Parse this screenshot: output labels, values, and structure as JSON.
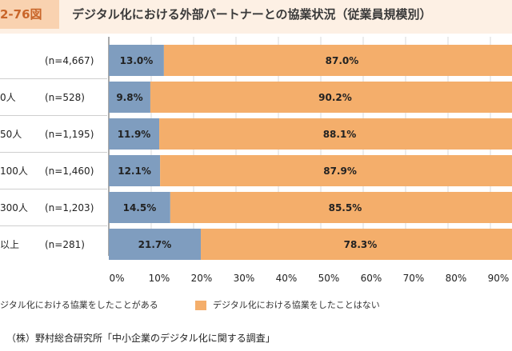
{
  "figure": {
    "number": "2-76図",
    "title": "デジタル化における外部パートナーとの協業状況（従業員規模別）"
  },
  "rows": [
    {
      "label": "",
      "n": "(n=4,667)"
    },
    {
      "label": "0人",
      "n": "(n=528)"
    },
    {
      "label": "50人",
      "n": "(n=1,195)"
    },
    {
      "label": "100人",
      "n": "(n=1,460)"
    },
    {
      "label": "300人",
      "n": "(n=1,203)"
    },
    {
      "label": "以上",
      "n": "(n=281)"
    }
  ],
  "legend": {
    "yes": "ジタル化における協業をしたことがある",
    "no": "デジタル化における協業をしたことはない"
  },
  "source": "（株）野村総合研究所「中小企業のデジタル化に関する調査」",
  "colors": {
    "yes": "#7f9dbf",
    "no": "#f4ae6b",
    "header_bg": "#fdf0e4",
    "fig_no_bg": "#f9d2b0",
    "fig_no_text": "#c9662a"
  },
  "chart_data": {
    "type": "bar",
    "orientation": "horizontal",
    "stacked": true,
    "categories": [
      "(n=4,667)",
      "(n=528)",
      "(n=1,195)",
      "(n=1,460)",
      "(n=1,203)",
      "(n=281)"
    ],
    "series": [
      {
        "name": "ジタル化における協業をしたことがある",
        "values": [
          13.0,
          9.8,
          11.9,
          12.1,
          14.5,
          21.7
        ],
        "labels": [
          "13.0%",
          "9.8%",
          "11.9%",
          "12.1%",
          "14.5%",
          "21.7%"
        ]
      },
      {
        "name": "デジタル化における協業をしたことはない",
        "values": [
          87.0,
          90.2,
          88.1,
          87.9,
          85.5,
          78.3
        ],
        "labels": [
          "87.0%",
          "90.2%",
          "88.1%",
          "87.9%",
          "85.5%",
          "78.3%"
        ]
      }
    ],
    "xticks": [
      "0%",
      "10%",
      "20%",
      "30%",
      "40%",
      "50%",
      "60%",
      "70%",
      "80%",
      "90%"
    ],
    "xlim": [
      0,
      100
    ],
    "grid": true
  }
}
